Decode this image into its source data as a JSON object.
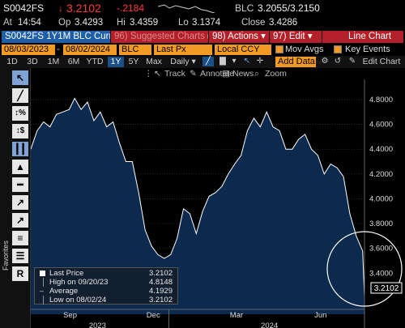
{
  "header": {
    "ticker": "S0042FS",
    "last_arrow": "↓",
    "last_price": "3.2102",
    "change": "-.2184",
    "source": "BLC",
    "bid_ask": "3.2055/3.2150",
    "at_label": "At",
    "at_time": "14:54",
    "op_label": "Op",
    "op_value": "3.4293",
    "hi_label": "Hi",
    "hi_value": "3.4359",
    "lo_label": "Lo",
    "lo_value": "3.1374",
    "close_label": "Close",
    "close_value": "3.4286"
  },
  "command_bar": {
    "security": "S0042FS 1Y1M BLC Curncy",
    "suggested": "96) Suggested Charts ▸",
    "actions": "98) Actions ▾",
    "edit": "97) Edit ▾",
    "title": "Line Chart"
  },
  "params": {
    "start_date": "08/03/2023",
    "end_date": "08/02/2024",
    "source": "BLC",
    "field": "Last Px",
    "currency": "Local CCY",
    "mov_avgs": "Mov Avgs",
    "key_events": "Key Events",
    "add_data": "Add Data"
  },
  "tabs": {
    "items": [
      "1D",
      "3D",
      "1M",
      "6M",
      "YTD",
      "1Y",
      "5Y",
      "Max"
    ],
    "active": "1Y",
    "frequency": "Daily ▾",
    "edit_chart": "Edit Chart"
  },
  "tools": {
    "track": "Track",
    "annotate": "Annotate",
    "news": "News",
    "zoom": "Zoom"
  },
  "sidebar": {
    "favorites": "Favorites"
  },
  "legend": {
    "last_price_label": "Last Price",
    "last_price_value": "3.2102",
    "high_label": "High on 09/20/23",
    "high_value": "4.8148",
    "average_label": "Average",
    "average_value": "4.1929",
    "low_label": "Low on 08/02/24",
    "low_value": "3.2102"
  },
  "colors": {
    "brand_orange": "#f39a24",
    "command_red": "#b4202a",
    "chart_fill": "#0b2a4e",
    "line": "#ffffff",
    "change_negative": "#ff3b3b"
  },
  "chart_data": {
    "type": "area",
    "x_range": [
      "2023-08-03",
      "2024-08-02"
    ],
    "ylim": [
      3.2,
      4.95
    ],
    "y_ticks": [
      "4.8000",
      "4.6000",
      "4.4000",
      "4.2000",
      "4.0000",
      "3.8000",
      "3.6000",
      "3.4000"
    ],
    "month_ticks": [
      "Sep",
      "Dec",
      "Mar",
      "Jun"
    ],
    "year_ticks": [
      "2023",
      "2024"
    ],
    "last_value_label": "3.2102",
    "series": [
      {
        "name": "Last Price",
        "x": [
          "2023-08-03",
          "2023-08-10",
          "2023-08-17",
          "2023-08-24",
          "2023-08-31",
          "2023-09-07",
          "2023-09-14",
          "2023-09-20",
          "2023-09-27",
          "2023-10-04",
          "2023-10-11",
          "2023-10-18",
          "2023-10-25",
          "2023-11-01",
          "2023-11-08",
          "2023-11-15",
          "2023-11-22",
          "2023-11-29",
          "2023-12-06",
          "2023-12-13",
          "2023-12-20",
          "2023-12-27",
          "2024-01-03",
          "2024-01-10",
          "2024-01-17",
          "2024-01-24",
          "2024-01-31",
          "2024-02-07",
          "2024-02-14",
          "2024-02-21",
          "2024-02-28",
          "2024-03-06",
          "2024-03-13",
          "2024-03-20",
          "2024-03-27",
          "2024-04-03",
          "2024-04-10",
          "2024-04-17",
          "2024-04-24",
          "2024-05-01",
          "2024-05-08",
          "2024-05-15",
          "2024-05-22",
          "2024-05-29",
          "2024-06-05",
          "2024-06-12",
          "2024-06-19",
          "2024-06-26",
          "2024-07-03",
          "2024-07-10",
          "2024-07-17",
          "2024-07-24",
          "2024-07-31",
          "2024-08-02"
        ],
        "values": [
          4.4,
          4.55,
          4.62,
          4.58,
          4.68,
          4.7,
          4.72,
          4.81,
          4.72,
          4.78,
          4.63,
          4.7,
          4.58,
          4.62,
          4.45,
          4.3,
          4.3,
          4.05,
          3.75,
          3.62,
          3.55,
          3.52,
          3.55,
          3.68,
          3.92,
          3.88,
          3.72,
          3.9,
          4.02,
          4.05,
          4.1,
          4.2,
          4.28,
          4.35,
          4.55,
          4.65,
          4.58,
          4.7,
          4.58,
          4.55,
          4.4,
          4.4,
          4.48,
          4.52,
          4.4,
          4.35,
          4.2,
          4.28,
          4.25,
          4.18,
          3.88,
          3.7,
          3.58,
          3.21
        ]
      }
    ]
  }
}
